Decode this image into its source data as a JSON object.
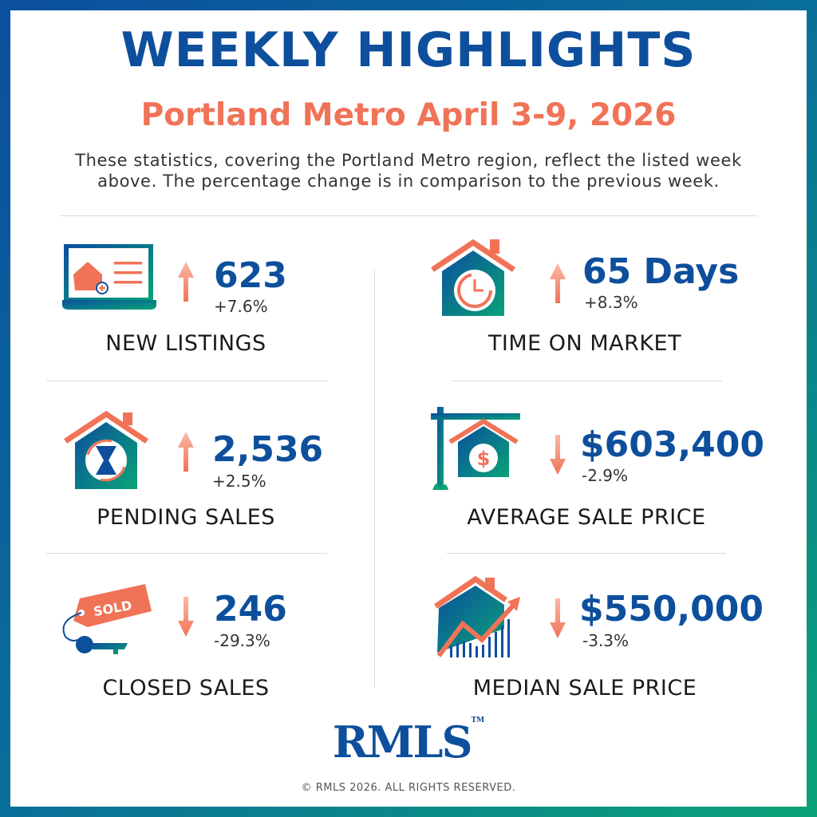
{
  "header": {
    "title": "WEEKLY HIGHLIGHTS",
    "subtitle": "Portland Metro April 3-9, 2026",
    "description_line1": "These statistics, covering the Portland Metro region, reflect the listed week",
    "description_line2": "above. The percentage change is in comparison to the previous week."
  },
  "colors": {
    "primary_blue": "#0d4f9c",
    "accent_coral": "#f07357",
    "gradient_green": "#0aa377"
  },
  "stats": [
    {
      "label": "NEW LISTINGS",
      "value": "623",
      "change": "+7.6%",
      "direction": "up",
      "icon": "laptop-house-listing-icon"
    },
    {
      "label": "PENDING SALES",
      "value": "2,536",
      "change": "+2.5%",
      "direction": "up",
      "icon": "house-hourglass-icon"
    },
    {
      "label": "CLOSED SALES",
      "value": "246",
      "change": "-29.3%",
      "direction": "down",
      "icon": "sold-tag-key-icon",
      "tag_text": "SOLD"
    },
    {
      "label": "TIME ON MARKET",
      "value": "65 Days",
      "change": "+8.3%",
      "direction": "up",
      "icon": "house-clock-icon"
    },
    {
      "label": "AVERAGE SALE PRICE",
      "value": "$603,400",
      "change": "-2.9%",
      "direction": "down",
      "icon": "house-sign-dollar-icon"
    },
    {
      "label": "MEDIAN SALE PRICE",
      "value": "$550,000",
      "change": "-3.3%",
      "direction": "down",
      "icon": "house-growth-chart-icon"
    }
  ],
  "footer": {
    "logo": "RMLS",
    "trademark": "TM",
    "copyright": "© RMLS 2026. ALL RIGHTS RESERVED."
  }
}
